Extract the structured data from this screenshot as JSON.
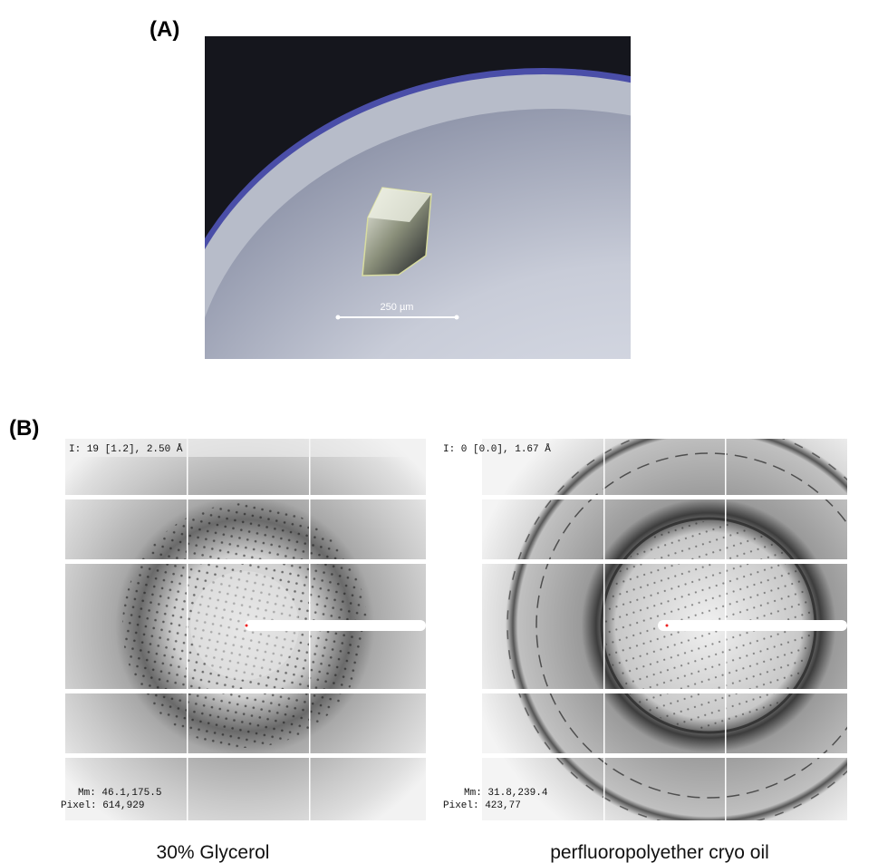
{
  "panel_a": {
    "label": "(A)",
    "scale_bar": "250 µm"
  },
  "panel_b": {
    "label": "(B)",
    "images": [
      {
        "header": "I: 19 [1.2], 2.50 Å",
        "mm": "Mm: 46.1,175.5",
        "pixel": "Pixel: 614,929",
        "caption": "30% Glycerol"
      },
      {
        "header": "I: 0 [0.0], 1.67 Å",
        "mm": "Mm: 31.8,239.4",
        "pixel": "Pixel: 423,77",
        "caption": "perfluoropolyether cryo oil"
      }
    ]
  }
}
